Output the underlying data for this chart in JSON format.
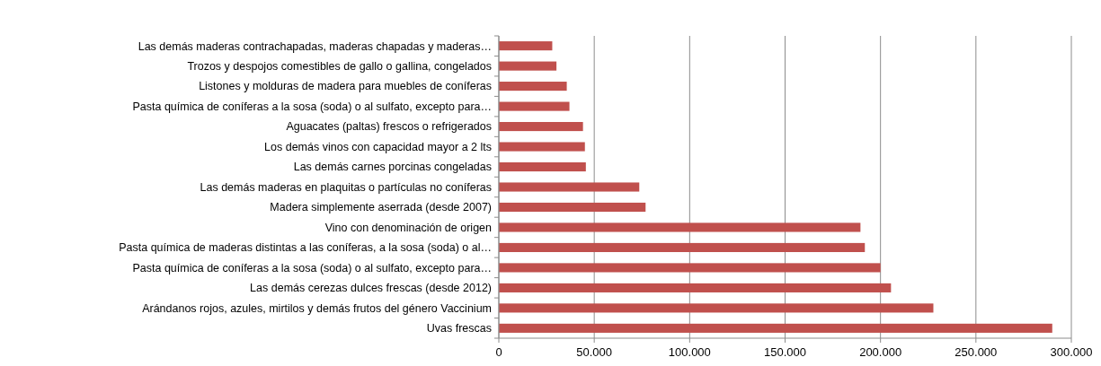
{
  "chart_data": {
    "type": "bar",
    "orientation": "horizontal",
    "categories": [
      "Las demás maderas contrachapadas, maderas chapadas y maderas…",
      "Trozos y despojos comestibles de gallo o gallina, congelados",
      "Listones y molduras de madera para muebles de coníferas",
      "Pasta química de coníferas a la sosa (soda) o al sulfato, excepto para…",
      "Aguacates (paltas) frescos o refrigerados",
      "Los demás vinos con capacidad mayor a 2 lts",
      "Las demás carnes porcinas congeladas",
      "Las demás maderas en plaquitas o partículas no coníferas",
      "Madera simplemente aserrada (desde 2007)",
      "Vino con denominación de origen",
      "Pasta química de maderas distintas a las coníferas, a la sosa (soda) o al…",
      "Pasta química de coníferas a la sosa (soda) o al sulfato, excepto para…",
      "Las demás cerezas dulces frescas (desde 2012)",
      "Arándanos rojos, azules, mirtilos y demás frutos del género Vaccinium",
      "Uvas frescas"
    ],
    "values": [
      28000,
      30200,
      35600,
      37000,
      44100,
      45100,
      45600,
      73600,
      76900,
      189500,
      191800,
      200000,
      205500,
      227700,
      290000
    ],
    "color": "#c0504d",
    "xlim": [
      0,
      300000
    ],
    "xticks": [
      {
        "value": 0,
        "label": "0"
      },
      {
        "value": 50000,
        "label": "50.000"
      },
      {
        "value": 100000,
        "label": "100.000"
      },
      {
        "value": 150000,
        "label": "150.000"
      },
      {
        "value": 200000,
        "label": "200.000"
      },
      {
        "value": 250000,
        "label": "250.000"
      },
      {
        "value": 300000,
        "label": "300.000"
      }
    ],
    "grid": "x"
  }
}
